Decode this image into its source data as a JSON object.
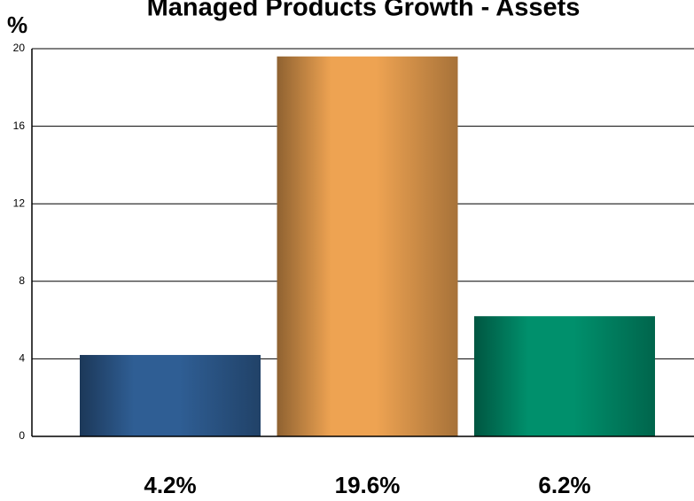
{
  "chart_data": {
    "type": "bar",
    "title": "Managed Products Growth - Assets",
    "y_label": "%",
    "categories": [
      null,
      null,
      null
    ],
    "values": [
      4.2,
      19.6,
      6.2
    ],
    "value_labels": [
      "4.2%",
      "19.6%",
      "6.2%"
    ],
    "colors": [
      "#2f5e94",
      "#eea352",
      "#00906c"
    ],
    "ylim": [
      0,
      20
    ],
    "yticks": [
      0,
      4,
      8,
      12,
      16,
      20
    ],
    "grid": true
  }
}
